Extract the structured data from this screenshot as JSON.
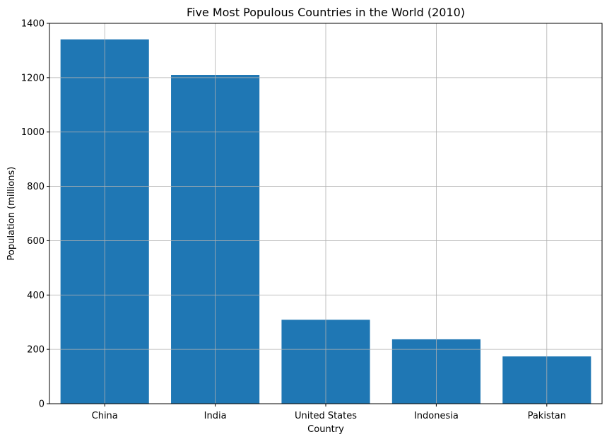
{
  "chart_data": {
    "type": "bar",
    "title": "Five Most Populous Countries in the World (2010)",
    "xlabel": "Country",
    "ylabel": "Population (millions)",
    "categories": [
      "China",
      "India",
      "United States",
      "Indonesia",
      "Pakistan"
    ],
    "values": [
      1341,
      1210,
      309,
      237,
      174
    ],
    "ylim": [
      0,
      1400
    ],
    "yticks": [
      0,
      200,
      400,
      600,
      800,
      1000,
      1200,
      1400
    ],
    "grid": true,
    "legend": "none",
    "bar_color": "#1f77b4",
    "grid_color": "#b0b0b0",
    "axis_color": "#000000"
  }
}
